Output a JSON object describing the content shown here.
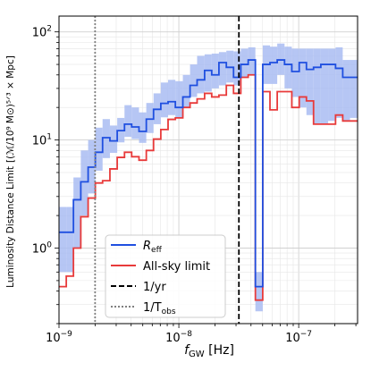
{
  "chart_data": {
    "type": "line",
    "xscale": "log",
    "yscale": "log",
    "xlim": [
      1e-09,
      3.1e-07
    ],
    "ylim": [
      0.2,
      140
    ],
    "grid": true,
    "legend_position": "lower-left",
    "xlabel_main": "f",
    "xlabel_sub": "GW",
    "xlabel_unit": " [Hz]",
    "ylabel_text": "Luminosity Distance Limit",
    "ylabel_bracket": "[(ℳ/10⁹ M⊙)⁵ᐟ³ × Mpc]",
    "xtick_labels": [
      {
        "value": 1e-09,
        "base": "10",
        "exp": "−9"
      },
      {
        "value": 1e-08,
        "base": "10",
        "exp": "−8"
      },
      {
        "value": 1e-07,
        "base": "10",
        "exp": "−7"
      }
    ],
    "ytick_labels": [
      {
        "value": 1,
        "base": "10",
        "exp": "0"
      },
      {
        "value": 10,
        "base": "10",
        "exp": "1"
      },
      {
        "value": 100,
        "base": "10",
        "exp": "2"
      }
    ],
    "bin_edges": [
      1e-09,
      1.15e-09,
      1.32e-09,
      1.52e-09,
      1.75e-09,
      2.01e-09,
      2.31e-09,
      2.66e-09,
      3.06e-09,
      3.52e-09,
      4.04e-09,
      4.65e-09,
      5.35e-09,
      6.15e-09,
      7.07e-09,
      8.13e-09,
      9.35e-09,
      1.08e-08,
      1.24e-08,
      1.42e-08,
      1.64e-08,
      1.88e-08,
      2.16e-08,
      2.49e-08,
      2.86e-08,
      3.29e-08,
      3.79e-08,
      4.35e-08,
      5.01e-08,
      5.76e-08,
      6.62e-08,
      7.62e-08,
      8.76e-08,
      1.01e-07,
      1.16e-07,
      1.33e-07,
      1.53e-07,
      1.76e-07,
      2.03e-07,
      2.33e-07,
      2.68e-07,
      3.1e-07
    ],
    "series": [
      {
        "name_main": "R",
        "name_sub": "eff",
        "color": "#1f4fe0",
        "values": [
          1.4,
          1.4,
          2.8,
          4.1,
          5.6,
          7.7,
          10.5,
          9.8,
          12.2,
          14.0,
          13.2,
          12.0,
          15.6,
          19.2,
          21.8,
          22.6,
          20.0,
          25.0,
          32.0,
          36.0,
          44.0,
          40.0,
          52.0,
          47.0,
          38.0,
          50.0,
          55.0,
          0.44,
          50.0,
          52.0,
          55.0,
          50.0,
          43.0,
          52.0,
          45.0,
          47.0,
          50.0,
          50.0,
          46.0,
          38.0,
          38.0
        ]
      },
      {
        "name": "All-sky limit",
        "color": "#e83a3a",
        "values": [
          0.44,
          0.55,
          1.0,
          1.95,
          2.9,
          4.0,
          4.2,
          5.4,
          6.9,
          7.7,
          7.0,
          6.5,
          8.0,
          10.2,
          12.5,
          15.5,
          16.0,
          20.0,
          22.0,
          24.0,
          27.0,
          25.0,
          26.0,
          32.0,
          27.0,
          38.0,
          40.0,
          0.33,
          28.0,
          19.0,
          28.0,
          28.0,
          20.0,
          25.0,
          23.0,
          14.0,
          14.0,
          14.0,
          17.0,
          15.0,
          15.0
        ]
      }
    ],
    "band": {
      "color": "#a9bcf2",
      "lower": [
        0.6,
        0.6,
        1.0,
        2.0,
        3.2,
        5.2,
        6.8,
        7.6,
        9.5,
        10.7,
        10.2,
        9.4,
        11.6,
        14.0,
        16.2,
        17.0,
        16.0,
        20.0,
        25.0,
        27.0,
        28.0,
        30.0,
        32.0,
        34.0,
        32.0,
        38.0,
        40.0,
        0.26,
        33.0,
        33.0,
        40.0,
        30.0,
        25.0,
        20.0,
        17.0,
        14.0,
        14.0,
        15.0,
        16.0,
        15.0,
        16.0
      ],
      "upper": [
        2.4,
        2.4,
        4.5,
        8.0,
        10.0,
        13.0,
        15.6,
        13.6,
        16.0,
        21.0,
        20.0,
        18.0,
        22.0,
        27.0,
        34.0,
        36.0,
        35.0,
        40.0,
        50.0,
        60.0,
        62.0,
        63.0,
        65.0,
        67.0,
        66.0,
        70.0,
        72.0,
        0.6,
        75.0,
        73.0,
        78.0,
        73.0,
        70.0,
        70.0,
        70.0,
        70.0,
        70.0,
        70.0,
        72.0,
        55.0,
        55.0
      ]
    },
    "vlines": [
      {
        "label": "1/yr",
        "x": 3.17e-08,
        "style": "dashed",
        "color": "#000000"
      },
      {
        "label_main": "1/T",
        "label_sub": "obs",
        "x": 2e-09,
        "style": "dotted",
        "color": "#808080"
      }
    ]
  }
}
